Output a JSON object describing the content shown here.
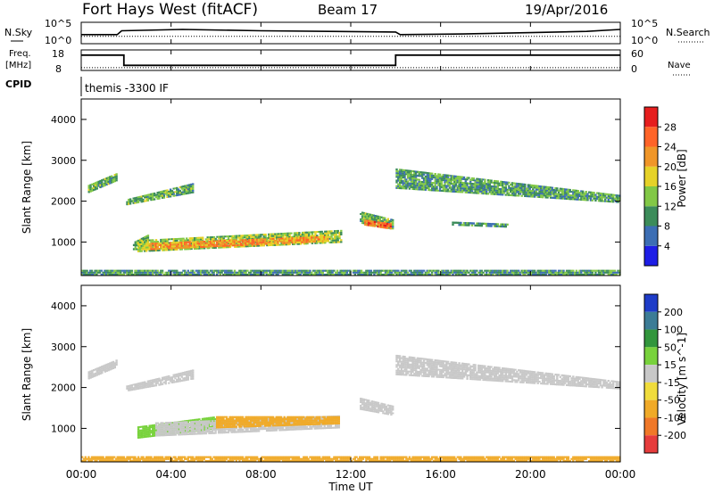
{
  "header": {
    "station": "Fort Hays West (fitACF)",
    "beam": "Beam 17",
    "date": "19/Apr/2016"
  },
  "noise_panel": {
    "left_label": "N.Sky",
    "right_label": "N.Search",
    "ticks_left": [
      "10^5",
      "10^0"
    ],
    "ticks_right": [
      "10^5",
      "10^0"
    ]
  },
  "freq_panel": {
    "left_label_top": "Freq.",
    "left_label_bottom": "[MHz]",
    "ticks_left": [
      "18",
      "8"
    ],
    "right_label": "Nave",
    "ticks_right": [
      "60",
      "0"
    ]
  },
  "cpid": {
    "label": "CPID",
    "value": "themis -3300 IF"
  },
  "x_axis": {
    "label": "Time UT",
    "ticks": [
      "00:00",
      "04:00",
      "08:00",
      "12:00",
      "16:00",
      "20:00",
      "00:00"
    ]
  },
  "y_axis": {
    "label": "Slant Range [km]",
    "ticks": [
      "1000",
      "2000",
      "3000",
      "4000"
    ]
  },
  "colorbars": {
    "power": {
      "title": "Power [dB]",
      "ticks": [
        "4",
        "8",
        "12",
        "16",
        "20",
        "24",
        "28"
      ],
      "colors": [
        "#1e1ee6",
        "#3c6eb4",
        "#3c8c5a",
        "#82c846",
        "#e6d228",
        "#f09628",
        "#ff6428",
        "#e61e1e"
      ]
    },
    "velocity": {
      "title": "Velocity [m s^-1]",
      "ticks": [
        "200",
        "100",
        "50",
        "15",
        "-15",
        "-50",
        "-100",
        "-200"
      ],
      "colors": [
        "#1e3cc8",
        "#3c7c96",
        "#32963c",
        "#78d23c",
        "#c8c8c8",
        "#f0dc3c",
        "#f0aa28",
        "#f07828",
        "#e63c3c"
      ]
    }
  },
  "chart_data": {
    "type": "heatmap",
    "time_range_hours": [
      0,
      24
    ],
    "range_ylim_km": [
      180,
      4500
    ],
    "noise": {
      "sky_level": [
        [
          0,
          1.0
        ],
        [
          1.6,
          1.0
        ],
        [
          1.8,
          1.6
        ],
        [
          4.5,
          1.8
        ],
        [
          8,
          1.6
        ],
        [
          11,
          1.5
        ],
        [
          14,
          1.4
        ],
        [
          14.2,
          1.0
        ],
        [
          17,
          1.1
        ],
        [
          20,
          1.3
        ],
        [
          22.5,
          1.5
        ],
        [
          24,
          1.8
        ]
      ],
      "search_level": [
        [
          0,
          1.0
        ],
        [
          24,
          1.0
        ]
      ]
    },
    "frequency_mhz": [
      [
        0,
        15.5
      ],
      [
        1.9,
        15.5
      ],
      [
        1.9,
        10.5
      ],
      [
        14.0,
        10.5
      ],
      [
        14.0,
        15.5
      ],
      [
        24,
        15.5
      ]
    ],
    "nave": [
      [
        0,
        8
      ],
      [
        24,
        8
      ]
    ],
    "power_regions": [
      {
        "t": [
          0.3,
          1.6
        ],
        "r_start_km": [
          2200,
          2500
        ],
        "r_end_km": [
          2400,
          2700
        ],
        "db": 12
      },
      {
        "t": [
          2.0,
          5.0
        ],
        "r_start_km": [
          1900,
          2200
        ],
        "r_end_km": [
          2050,
          2450
        ],
        "db": 12
      },
      {
        "t": [
          2.3,
          3.0
        ],
        "r_start_km": [
          800,
          800
        ],
        "r_end_km": [
          1000,
          1200
        ],
        "db": 13
      },
      {
        "t": [
          2.5,
          11.6
        ],
        "r_start_km": [
          750,
          980
        ],
        "r_end_km": [
          1050,
          1300
        ],
        "db": 14
      },
      {
        "t": [
          3.0,
          11.0
        ],
        "r_start_km": [
          800,
          1000
        ],
        "r_end_km": [
          980,
          1150
        ],
        "db": 22
      },
      {
        "t": [
          12.4,
          13.9
        ],
        "r_start_km": [
          1450,
          1300
        ],
        "r_end_km": [
          1750,
          1550
        ],
        "db": 12
      },
      {
        "t": [
          12.6,
          13.8
        ],
        "r_start_km": [
          1400,
          1300
        ],
        "r_end_km": [
          1550,
          1450
        ],
        "db": 25
      },
      {
        "t": [
          14.0,
          24.0
        ],
        "r_start_km": [
          2300,
          1950
        ],
        "r_end_km": [
          2800,
          2150
        ],
        "db": 11
      },
      {
        "t": [
          16.5,
          19.0
        ],
        "r_start_km": [
          1400,
          1350
        ],
        "r_end_km": [
          1500,
          1450
        ],
        "db": 11
      },
      {
        "t": [
          0,
          24
        ],
        "r_start_km": [
          180,
          180
        ],
        "r_end_km": [
          320,
          320
        ],
        "db": 10
      }
    ],
    "velocity_regions": [
      {
        "t": [
          0.3,
          1.6
        ],
        "r_start_km": [
          2200,
          2500
        ],
        "r_end_km": [
          2400,
          2700
        ],
        "v": 0
      },
      {
        "t": [
          2.0,
          5.0
        ],
        "r_start_km": [
          1900,
          2200
        ],
        "r_end_km": [
          2050,
          2450
        ],
        "v": 0
      },
      {
        "t": [
          2.5,
          6.0
        ],
        "r_start_km": [
          750,
          980
        ],
        "r_end_km": [
          1050,
          1300
        ],
        "v": 25
      },
      {
        "t": [
          3.3,
          11.5
        ],
        "r_start_km": [
          800,
          1000
        ],
        "r_end_km": [
          1150,
          1320
        ],
        "v": 0
      },
      {
        "t": [
          6.0,
          11.5
        ],
        "r_start_km": [
          1000,
          1100
        ],
        "r_end_km": [
          1300,
          1300
        ],
        "v": -70
      },
      {
        "t": [
          12.4,
          13.9
        ],
        "r_start_km": [
          1450,
          1300
        ],
        "r_end_km": [
          1750,
          1550
        ],
        "v": 0
      },
      {
        "t": [
          14.0,
          24.0
        ],
        "r_start_km": [
          2300,
          1950
        ],
        "r_end_km": [
          2800,
          2150
        ],
        "v": 0
      },
      {
        "t": [
          0,
          24
        ],
        "r_start_km": [
          180,
          180
        ],
        "r_end_km": [
          320,
          320
        ],
        "v": -60
      }
    ]
  }
}
